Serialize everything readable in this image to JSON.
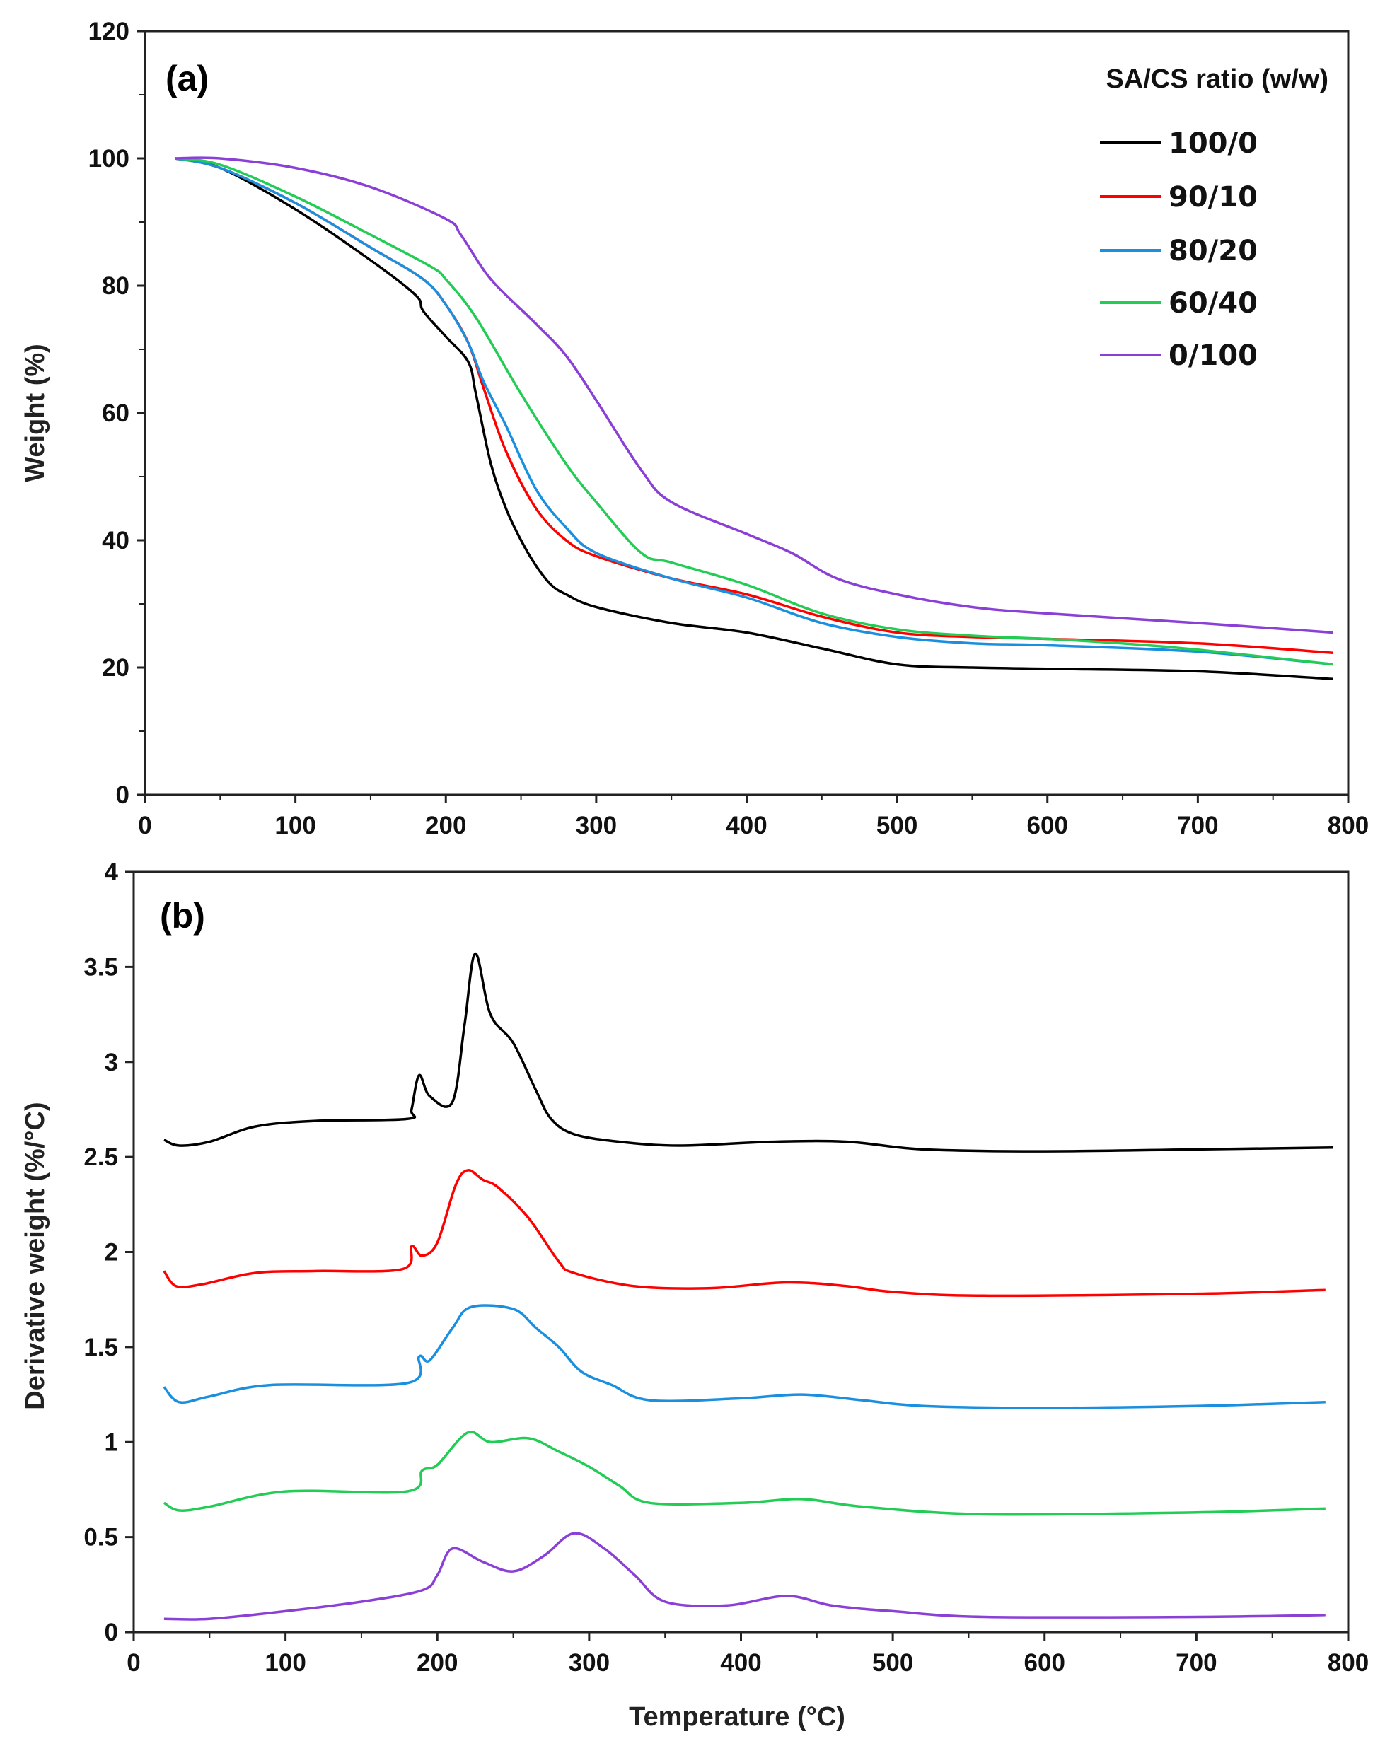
{
  "colors": {
    "100/0": "#000000",
    "90/10": "#ff0000",
    "80/20": "#1a8fe0",
    "60/40": "#22cc55",
    "0/100": "#8a3fd6"
  },
  "chart_data": [
    {
      "type": "line",
      "panel_label": "(a)",
      "title": "",
      "xlabel": "",
      "ylabel": "Weight (%)",
      "xlim": [
        0,
        800
      ],
      "ylim": [
        0,
        120
      ],
      "xticks": [
        0,
        100,
        200,
        300,
        400,
        500,
        600,
        700,
        800
      ],
      "yticks": [
        0,
        20,
        40,
        60,
        80,
        100,
        120
      ],
      "legend_title": "SA/CS ratio (w/w)",
      "legend_position": "top-right",
      "series": [
        {
          "name": "100/0",
          "x": [
            20,
            50,
            100,
            150,
            180,
            185,
            200,
            215,
            220,
            230,
            240,
            250,
            260,
            270,
            280,
            300,
            350,
            400,
            450,
            500,
            550,
            600,
            700,
            790
          ],
          "y": [
            100,
            98.5,
            92,
            84,
            78.5,
            76,
            72,
            68,
            63,
            52,
            45,
            40,
            36,
            33,
            31.5,
            29.5,
            27,
            25.5,
            23,
            20.5,
            20,
            19.8,
            19.4,
            18.2
          ]
        },
        {
          "name": "90/10",
          "x": [
            20,
            50,
            100,
            150,
            185,
            200,
            215,
            225,
            240,
            260,
            280,
            300,
            350,
            400,
            450,
            500,
            550,
            600,
            700,
            790
          ],
          "y": [
            100,
            98.5,
            93,
            86,
            81,
            77,
            71,
            64,
            54,
            45,
            40,
            37.5,
            34,
            31.5,
            28,
            25.5,
            24.8,
            24.5,
            23.8,
            22.3
          ]
        },
        {
          "name": "80/20",
          "x": [
            20,
            50,
            100,
            150,
            185,
            200,
            215,
            225,
            240,
            260,
            280,
            300,
            350,
            400,
            450,
            500,
            550,
            600,
            700,
            790
          ],
          "y": [
            100,
            98.5,
            93,
            86,
            81,
            77,
            71,
            65,
            58,
            48,
            42,
            38,
            34,
            31,
            27,
            24.8,
            23.8,
            23.5,
            22.5,
            20.5
          ]
        },
        {
          "name": "60/40",
          "x": [
            20,
            50,
            100,
            150,
            190,
            200,
            220,
            250,
            280,
            300,
            330,
            350,
            400,
            450,
            500,
            550,
            600,
            650,
            700,
            790
          ],
          "y": [
            100,
            99,
            94,
            88,
            83,
            81,
            75,
            63,
            52,
            46,
            38,
            36.5,
            33,
            28.5,
            26,
            25,
            24.5,
            23.8,
            22.8,
            20.5
          ]
        },
        {
          "name": "0/100",
          "x": [
            20,
            50,
            100,
            150,
            200,
            210,
            230,
            260,
            280,
            300,
            330,
            350,
            400,
            430,
            460,
            500,
            550,
            600,
            700,
            790
          ],
          "y": [
            100,
            100,
            98.5,
            95.5,
            90.5,
            88,
            81,
            74,
            69,
            62,
            51,
            46,
            41,
            38,
            34,
            31.5,
            29.5,
            28.5,
            27,
            25.5
          ]
        }
      ]
    },
    {
      "type": "line",
      "panel_label": "(b)",
      "title": "",
      "xlabel": "Temperature (°C)",
      "xlabel_main": "Temperature (",
      "xlabel_sup": "o",
      "xlabel_end": "C)",
      "ylabel": "Derivative weight (%/°C)",
      "ylabel_main": "Derivative weight (%/",
      "ylabel_sup": "o",
      "ylabel_end": "C)",
      "xlim": [
        0,
        800
      ],
      "ylim": [
        0,
        4
      ],
      "xticks": [
        0,
        100,
        200,
        300,
        400,
        500,
        600,
        700,
        800
      ],
      "yticks": [
        0,
        0.5,
        1,
        1.5,
        2,
        2.5,
        3,
        3.5,
        4
      ],
      "series": [
        {
          "name": "100/0",
          "x": [
            20,
            30,
            50,
            80,
            120,
            180,
            183,
            188,
            195,
            210,
            218,
            225,
            235,
            250,
            265,
            275,
            290,
            320,
            360,
            420,
            470,
            520,
            600,
            700,
            790
          ],
          "y": [
            2.59,
            2.56,
            2.58,
            2.66,
            2.69,
            2.7,
            2.75,
            2.93,
            2.82,
            2.79,
            3.2,
            3.57,
            3.25,
            3.1,
            2.85,
            2.7,
            2.62,
            2.58,
            2.56,
            2.58,
            2.58,
            2.54,
            2.53,
            2.54,
            2.55
          ]
        },
        {
          "name": "90/10",
          "x": [
            20,
            28,
            45,
            80,
            120,
            177,
            183,
            190,
            200,
            212,
            220,
            230,
            240,
            260,
            280,
            290,
            330,
            380,
            430,
            470,
            500,
            560,
            700,
            785
          ],
          "y": [
            1.9,
            1.82,
            1.83,
            1.89,
            1.9,
            1.91,
            2.03,
            1.98,
            2.05,
            2.35,
            2.43,
            2.38,
            2.34,
            2.18,
            1.95,
            1.89,
            1.82,
            1.81,
            1.84,
            1.82,
            1.79,
            1.77,
            1.78,
            1.8
          ]
        },
        {
          "name": "80/20",
          "x": [
            20,
            30,
            50,
            90,
            180,
            188,
            195,
            210,
            222,
            250,
            265,
            280,
            295,
            315,
            340,
            400,
            440,
            480,
            520,
            600,
            700,
            785
          ],
          "y": [
            1.29,
            1.21,
            1.24,
            1.3,
            1.31,
            1.45,
            1.43,
            1.6,
            1.71,
            1.7,
            1.6,
            1.5,
            1.37,
            1.3,
            1.22,
            1.23,
            1.25,
            1.22,
            1.19,
            1.18,
            1.19,
            1.21
          ]
        },
        {
          "name": "60/40",
          "x": [
            20,
            30,
            50,
            100,
            180,
            190,
            200,
            220,
            235,
            260,
            280,
            300,
            320,
            340,
            400,
            440,
            480,
            560,
            700,
            785
          ],
          "y": [
            0.68,
            0.64,
            0.66,
            0.74,
            0.74,
            0.85,
            0.88,
            1.05,
            1.0,
            1.02,
            0.95,
            0.87,
            0.77,
            0.68,
            0.68,
            0.7,
            0.66,
            0.62,
            0.63,
            0.65
          ]
        },
        {
          "name": "0/100",
          "x": [
            20,
            50,
            100,
            150,
            190,
            200,
            210,
            230,
            250,
            270,
            290,
            310,
            330,
            350,
            390,
            430,
            460,
            500,
            560,
            700,
            785
          ],
          "y": [
            0.07,
            0.07,
            0.11,
            0.16,
            0.22,
            0.3,
            0.44,
            0.37,
            0.32,
            0.4,
            0.52,
            0.44,
            0.3,
            0.16,
            0.14,
            0.19,
            0.14,
            0.11,
            0.08,
            0.08,
            0.09
          ]
        }
      ]
    }
  ]
}
